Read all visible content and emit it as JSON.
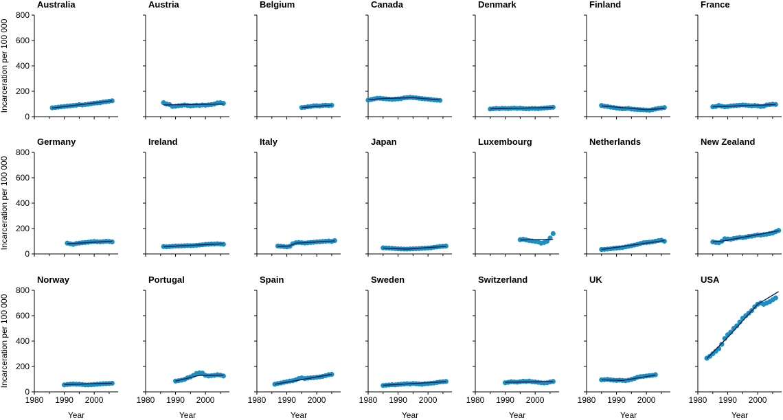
{
  "colors": {
    "point": "#1a8fc0",
    "fit": "#0b1f5e",
    "axis": "#000000"
  },
  "chart_data": {
    "type": "scatter",
    "layout": "small-multiples 3x7",
    "xlabel": "Year",
    "ylabel": "Incarceration per 100 000",
    "xlim": [
      1980,
      2008
    ],
    "ylim": [
      0,
      800
    ],
    "xticks": [
      1980,
      1990,
      2000
    ],
    "yticks": [
      0,
      200,
      400,
      600,
      800
    ],
    "panels": [
      {
        "name": "Australia",
        "x": [
          1986,
          1987,
          1988,
          1989,
          1990,
          1991,
          1992,
          1993,
          1994,
          1995,
          1996,
          1997,
          1998,
          1999,
          2000,
          2001,
          2002,
          2003,
          2004,
          2005,
          2006
        ],
        "y": [
          70,
          72,
          75,
          78,
          80,
          83,
          85,
          88,
          90,
          95,
          92,
          95,
          98,
          102,
          106,
          108,
          110,
          115,
          118,
          122,
          125
        ],
        "fit": [
          [
            1986,
            68
          ],
          [
            2006,
            125
          ]
        ]
      },
      {
        "name": "Austria",
        "x": [
          1986,
          1987,
          1988,
          1989,
          1990,
          1991,
          1992,
          1993,
          1994,
          1995,
          1996,
          1997,
          1998,
          1999,
          2000,
          2001,
          2002,
          2003,
          2004,
          2005,
          2006
        ],
        "y": [
          110,
          100,
          95,
          80,
          82,
          86,
          88,
          92,
          88,
          85,
          87,
          90,
          88,
          92,
          90,
          93,
          95,
          100,
          108,
          110,
          105
        ],
        "fit": [
          [
            1986,
            92
          ],
          [
            2006,
            100
          ]
        ]
      },
      {
        "name": "Belgium",
        "x": [
          1995,
          1996,
          1997,
          1998,
          1999,
          2000,
          2001,
          2002,
          2003,
          2004,
          2005
        ],
        "y": [
          72,
          74,
          78,
          80,
          85,
          86,
          84,
          88,
          90,
          88,
          90
        ],
        "fit": [
          [
            1995,
            72
          ],
          [
            2005,
            90
          ]
        ]
      },
      {
        "name": "Canada",
        "x": [
          1980,
          1981,
          1982,
          1983,
          1984,
          1985,
          1986,
          1987,
          1988,
          1989,
          1990,
          1991,
          1992,
          1993,
          1994,
          1995,
          1996,
          1997,
          1998,
          1999,
          2000,
          2001,
          2002,
          2003,
          2004
        ],
        "y": [
          130,
          135,
          140,
          145,
          145,
          142,
          140,
          138,
          136,
          138,
          140,
          142,
          148,
          150,
          152,
          150,
          148,
          145,
          142,
          140,
          138,
          135,
          132,
          130,
          128
        ],
        "fit": [
          [
            1980,
            132
          ],
          [
            1985,
            143
          ],
          [
            1995,
            150
          ],
          [
            2004,
            132
          ]
        ]
      },
      {
        "name": "Denmark",
        "x": [
          1985,
          1986,
          1987,
          1988,
          1989,
          1990,
          1991,
          1992,
          1993,
          1994,
          1995,
          1996,
          1997,
          1998,
          1999,
          2000,
          2001,
          2002,
          2003,
          2004,
          2005,
          2006
        ],
        "y": [
          60,
          62,
          65,
          63,
          66,
          65,
          64,
          66,
          68,
          65,
          67,
          64,
          62,
          63,
          65,
          64,
          63,
          66,
          68,
          70,
          72,
          74
        ],
        "fit": [
          [
            1985,
            62
          ],
          [
            2006,
            72
          ]
        ]
      },
      {
        "name": "Finland",
        "x": [
          1985,
          1986,
          1987,
          1988,
          1989,
          1990,
          1991,
          1992,
          1993,
          1994,
          1995,
          1996,
          1997,
          1998,
          1999,
          2000,
          2001,
          2002,
          2003,
          2004,
          2005,
          2006
        ],
        "y": [
          88,
          82,
          80,
          75,
          72,
          68,
          65,
          62,
          63,
          65,
          60,
          58,
          56,
          55,
          54,
          52,
          50,
          55,
          60,
          65,
          68,
          72
        ],
        "fit": [
          [
            1985,
            85
          ],
          [
            2000,
            55
          ],
          [
            2006,
            65
          ]
        ]
      },
      {
        "name": "France",
        "x": [
          1985,
          1986,
          1987,
          1988,
          1989,
          1990,
          1991,
          1992,
          1993,
          1994,
          1995,
          1996,
          1997,
          1998,
          1999,
          2000,
          2001,
          2002,
          2003,
          2004,
          2005,
          2006
        ],
        "y": [
          78,
          80,
          88,
          82,
          78,
          80,
          84,
          86,
          88,
          90,
          92,
          90,
          88,
          86,
          88,
          85,
          80,
          82,
          92,
          95,
          98,
          96
        ],
        "fit": [
          [
            1985,
            78
          ],
          [
            2006,
            95
          ]
        ]
      },
      {
        "name": "Germany",
        "x": [
          1991,
          1992,
          1993,
          1994,
          1995,
          1996,
          1997,
          1998,
          1999,
          2000,
          2001,
          2002,
          2003,
          2004,
          2005,
          2006
        ],
        "y": [
          85,
          80,
          75,
          82,
          85,
          88,
          90,
          92,
          96,
          98,
          96,
          95,
          97,
          100,
          98,
          95
        ],
        "fit": [
          [
            1991,
            80
          ],
          [
            2006,
            100
          ]
        ]
      },
      {
        "name": "Ireland",
        "x": [
          1986,
          1987,
          1988,
          1989,
          1990,
          1991,
          1992,
          1993,
          1994,
          1995,
          1996,
          1997,
          1998,
          1999,
          2000,
          2001,
          2002,
          2003,
          2004,
          2005,
          2006
        ],
        "y": [
          58,
          56,
          58,
          60,
          62,
          62,
          63,
          64,
          66,
          65,
          66,
          68,
          70,
          72,
          75,
          76,
          78,
          78,
          80,
          78,
          76
        ],
        "fit": [
          [
            1986,
            57
          ],
          [
            2006,
            80
          ]
        ]
      },
      {
        "name": "Italy",
        "x": [
          1987,
          1988,
          1989,
          1990,
          1991,
          1992,
          1993,
          1994,
          1995,
          1996,
          1997,
          1998,
          1999,
          2000,
          2001,
          2002,
          2003,
          2004,
          2005,
          2006
        ],
        "y": [
          62,
          60,
          58,
          55,
          60,
          80,
          88,
          90,
          88,
          86,
          88,
          90,
          92,
          95,
          96,
          98,
          100,
          102,
          98,
          105
        ],
        "fit": [
          [
            1987,
            60
          ],
          [
            1991,
            62
          ],
          [
            1993,
            85
          ],
          [
            2006,
            102
          ]
        ]
      },
      {
        "name": "Japan",
        "x": [
          1985,
          1986,
          1987,
          1988,
          1989,
          1990,
          1991,
          1992,
          1993,
          1994,
          1995,
          1996,
          1997,
          1998,
          1999,
          2000,
          2001,
          2002,
          2003,
          2004,
          2005,
          2006
        ],
        "y": [
          48,
          47,
          46,
          44,
          42,
          40,
          39,
          38,
          38,
          39,
          40,
          41,
          42,
          44,
          45,
          47,
          48,
          52,
          55,
          58,
          60,
          62
        ],
        "fit": [
          [
            1985,
            46
          ],
          [
            1993,
            38
          ],
          [
            2006,
            60
          ]
        ]
      },
      {
        "name": "Luxembourg",
        "x": [
          1995,
          1996,
          1997,
          1998,
          1999,
          2000,
          2001,
          2002,
          2003,
          2004,
          2005,
          2006
        ],
        "y": [
          112,
          115,
          110,
          105,
          102,
          98,
          95,
          85,
          90,
          100,
          125,
          160
        ],
        "fit": [
          [
            1995,
            110
          ],
          [
            2006,
            115
          ]
        ]
      },
      {
        "name": "Netherlands",
        "x": [
          1985,
          1986,
          1987,
          1988,
          1989,
          1990,
          1991,
          1992,
          1993,
          1994,
          1995,
          1996,
          1997,
          1998,
          1999,
          2000,
          2001,
          2002,
          2003,
          2004,
          2005,
          2006
        ],
        "y": [
          35,
          36,
          38,
          40,
          44,
          46,
          48,
          50,
          55,
          60,
          65,
          70,
          75,
          82,
          88,
          90,
          92,
          95,
          100,
          105,
          108,
          100
        ],
        "fit": [
          [
            1985,
            35
          ],
          [
            2006,
            105
          ]
        ]
      },
      {
        "name": "New Zealand",
        "x": [
          1985,
          1986,
          1987,
          1988,
          1989,
          1990,
          1991,
          1992,
          1993,
          1994,
          1995,
          1996,
          1997,
          1998,
          1999,
          2000,
          2001,
          2002,
          2003,
          2004,
          2005,
          2006,
          2007
        ],
        "y": [
          95,
          90,
          88,
          100,
          120,
          118,
          115,
          122,
          125,
          130,
          128,
          132,
          138,
          140,
          145,
          150,
          148,
          152,
          155,
          160,
          165,
          175,
          185
        ],
        "fit": [
          [
            1985,
            95
          ],
          [
            1988,
            100
          ],
          [
            2007,
            182
          ]
        ]
      },
      {
        "name": "Norway",
        "x": [
          1990,
          1991,
          1992,
          1993,
          1994,
          1995,
          1996,
          1997,
          1998,
          1999,
          2000,
          2001,
          2002,
          2003,
          2004,
          2005,
          2006
        ],
        "y": [
          55,
          58,
          60,
          62,
          60,
          60,
          58,
          55,
          55,
          56,
          58,
          60,
          62,
          64,
          65,
          66,
          68
        ],
        "fit": [
          [
            1990,
            58
          ],
          [
            2006,
            68
          ]
        ]
      },
      {
        "name": "Portugal",
        "x": [
          1990,
          1991,
          1992,
          1993,
          1994,
          1995,
          1996,
          1997,
          1998,
          1999,
          2000,
          2001,
          2002,
          2003,
          2004,
          2005,
          2006
        ],
        "y": [
          85,
          88,
          92,
          98,
          110,
          118,
          130,
          145,
          150,
          148,
          130,
          125,
          128,
          130,
          135,
          132,
          125
        ],
        "fit": [
          [
            1990,
            85
          ],
          [
            1998,
            130
          ],
          [
            2006,
            132
          ]
        ]
      },
      {
        "name": "Spain",
        "x": [
          1986,
          1987,
          1988,
          1989,
          1990,
          1991,
          1992,
          1993,
          1994,
          1995,
          1996,
          1997,
          1998,
          1999,
          2000,
          2001,
          2002,
          2003,
          2004,
          2005
        ],
        "y": [
          60,
          66,
          70,
          75,
          80,
          85,
          88,
          95,
          105,
          110,
          105,
          108,
          110,
          112,
          115,
          118,
          122,
          128,
          135,
          138
        ],
        "fit": [
          [
            1986,
            60
          ],
          [
            2005,
            138
          ]
        ]
      },
      {
        "name": "Sweden",
        "x": [
          1985,
          1986,
          1987,
          1988,
          1989,
          1990,
          1991,
          1992,
          1993,
          1994,
          1995,
          1996,
          1997,
          1998,
          1999,
          2000,
          2001,
          2002,
          2003,
          2004,
          2005,
          2006
        ],
        "y": [
          50,
          52,
          54,
          56,
          55,
          58,
          60,
          62,
          64,
          62,
          66,
          64,
          62,
          60,
          64,
          65,
          68,
          70,
          74,
          78,
          80,
          82
        ],
        "fit": [
          [
            1985,
            52
          ],
          [
            2006,
            80
          ]
        ]
      },
      {
        "name": "Switzerland",
        "x": [
          1990,
          1991,
          1992,
          1993,
          1994,
          1995,
          1996,
          1997,
          1998,
          1999,
          2000,
          2001,
          2002,
          2003,
          2004,
          2005,
          2006
        ],
        "y": [
          72,
          75,
          80,
          78,
          76,
          80,
          84,
          82,
          85,
          80,
          78,
          75,
          72,
          70,
          72,
          78,
          82
        ],
        "fit": [
          [
            1990,
            76
          ],
          [
            2006,
            80
          ]
        ]
      },
      {
        "name": "UK",
        "x": [
          1985,
          1986,
          1987,
          1988,
          1989,
          1990,
          1991,
          1992,
          1993,
          1994,
          1995,
          1996,
          1997,
          1998,
          1999,
          2000,
          2001,
          2002,
          2003
        ],
        "y": [
          95,
          96,
          98,
          95,
          92,
          90,
          92,
          90,
          88,
          92,
          98,
          105,
          115,
          120,
          122,
          125,
          128,
          130,
          135
        ],
        "fit": [
          [
            1985,
            95
          ],
          [
            1992,
            90
          ],
          [
            2003,
            132
          ]
        ]
      },
      {
        "name": "USA",
        "x": [
          1983,
          1984,
          1985,
          1986,
          1987,
          1988,
          1989,
          1990,
          1991,
          1992,
          1993,
          1994,
          1995,
          1996,
          1997,
          1998,
          1999,
          2000,
          2001,
          2002,
          2003,
          2004,
          2005,
          2006
        ],
        "y": [
          265,
          280,
          300,
          320,
          340,
          375,
          420,
          450,
          470,
          500,
          520,
          550,
          580,
          600,
          620,
          640,
          670,
          690,
          700,
          690,
          700,
          710,
          725,
          740
        ],
        "fit": [
          [
            1983,
            262
          ],
          [
            1990,
            430
          ],
          [
            2000,
            690
          ],
          [
            2007,
            790
          ]
        ]
      }
    ]
  }
}
